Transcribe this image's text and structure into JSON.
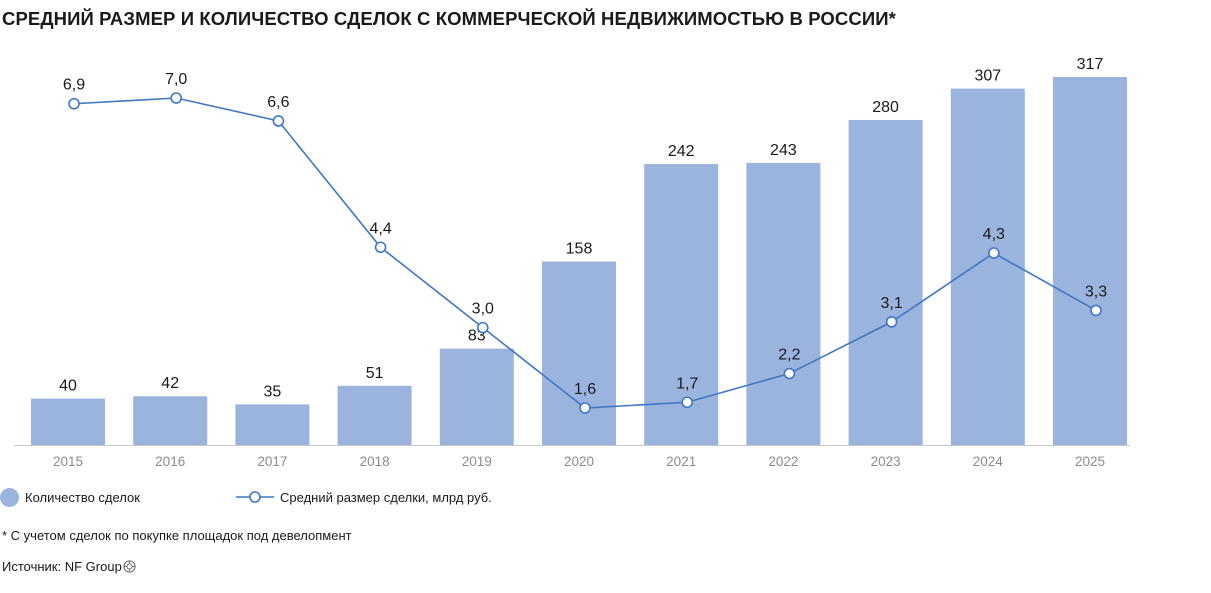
{
  "title": "СРЕДНИЙ РАЗМЕР И КОЛИЧЕСТВО СДЕЛОК С КОММЕРЧЕСКОЙ НЕДВИЖИМОСТЬЮ В РОССИИ*",
  "footnote": "* С учетом сделок по покупке площадок под девелопмент",
  "source": "Источник: NF Group",
  "colors": {
    "bar": "#9bb4de",
    "line": "#3f77c4",
    "axis_text": "#8c8c8c",
    "baseline": "#c8c8c8"
  },
  "chart_data": {
    "type": "bar",
    "categories": [
      "2015",
      "2016",
      "2017",
      "2018",
      "2019",
      "2020",
      "2021",
      "2022",
      "2023",
      "2024",
      "2025"
    ],
    "series": [
      {
        "name": "Количество сделок",
        "type": "bar",
        "values": [
          40,
          42,
          35,
          51,
          83,
          158,
          242,
          243,
          280,
          307,
          317
        ],
        "labels": [
          "40",
          "42",
          "35",
          "51",
          "83",
          "158",
          "242",
          "243",
          "280",
          "307",
          "317"
        ]
      },
      {
        "name": "Средний размер сделки, млрд руб.",
        "type": "line",
        "values": [
          6.9,
          7.0,
          6.6,
          4.4,
          3.0,
          1.6,
          1.7,
          2.2,
          3.1,
          4.3,
          3.3
        ],
        "labels": [
          "6,9",
          "7,0",
          "6,6",
          "4,4",
          "3,0",
          "1,6",
          "1,7",
          "2,2",
          "3,1",
          "4,3",
          "3,3"
        ]
      }
    ],
    "bar_ylim": [
      0,
      317
    ],
    "line_ylim": [
      0,
      7.0
    ],
    "grid": false,
    "legend_position": "bottom-left"
  }
}
